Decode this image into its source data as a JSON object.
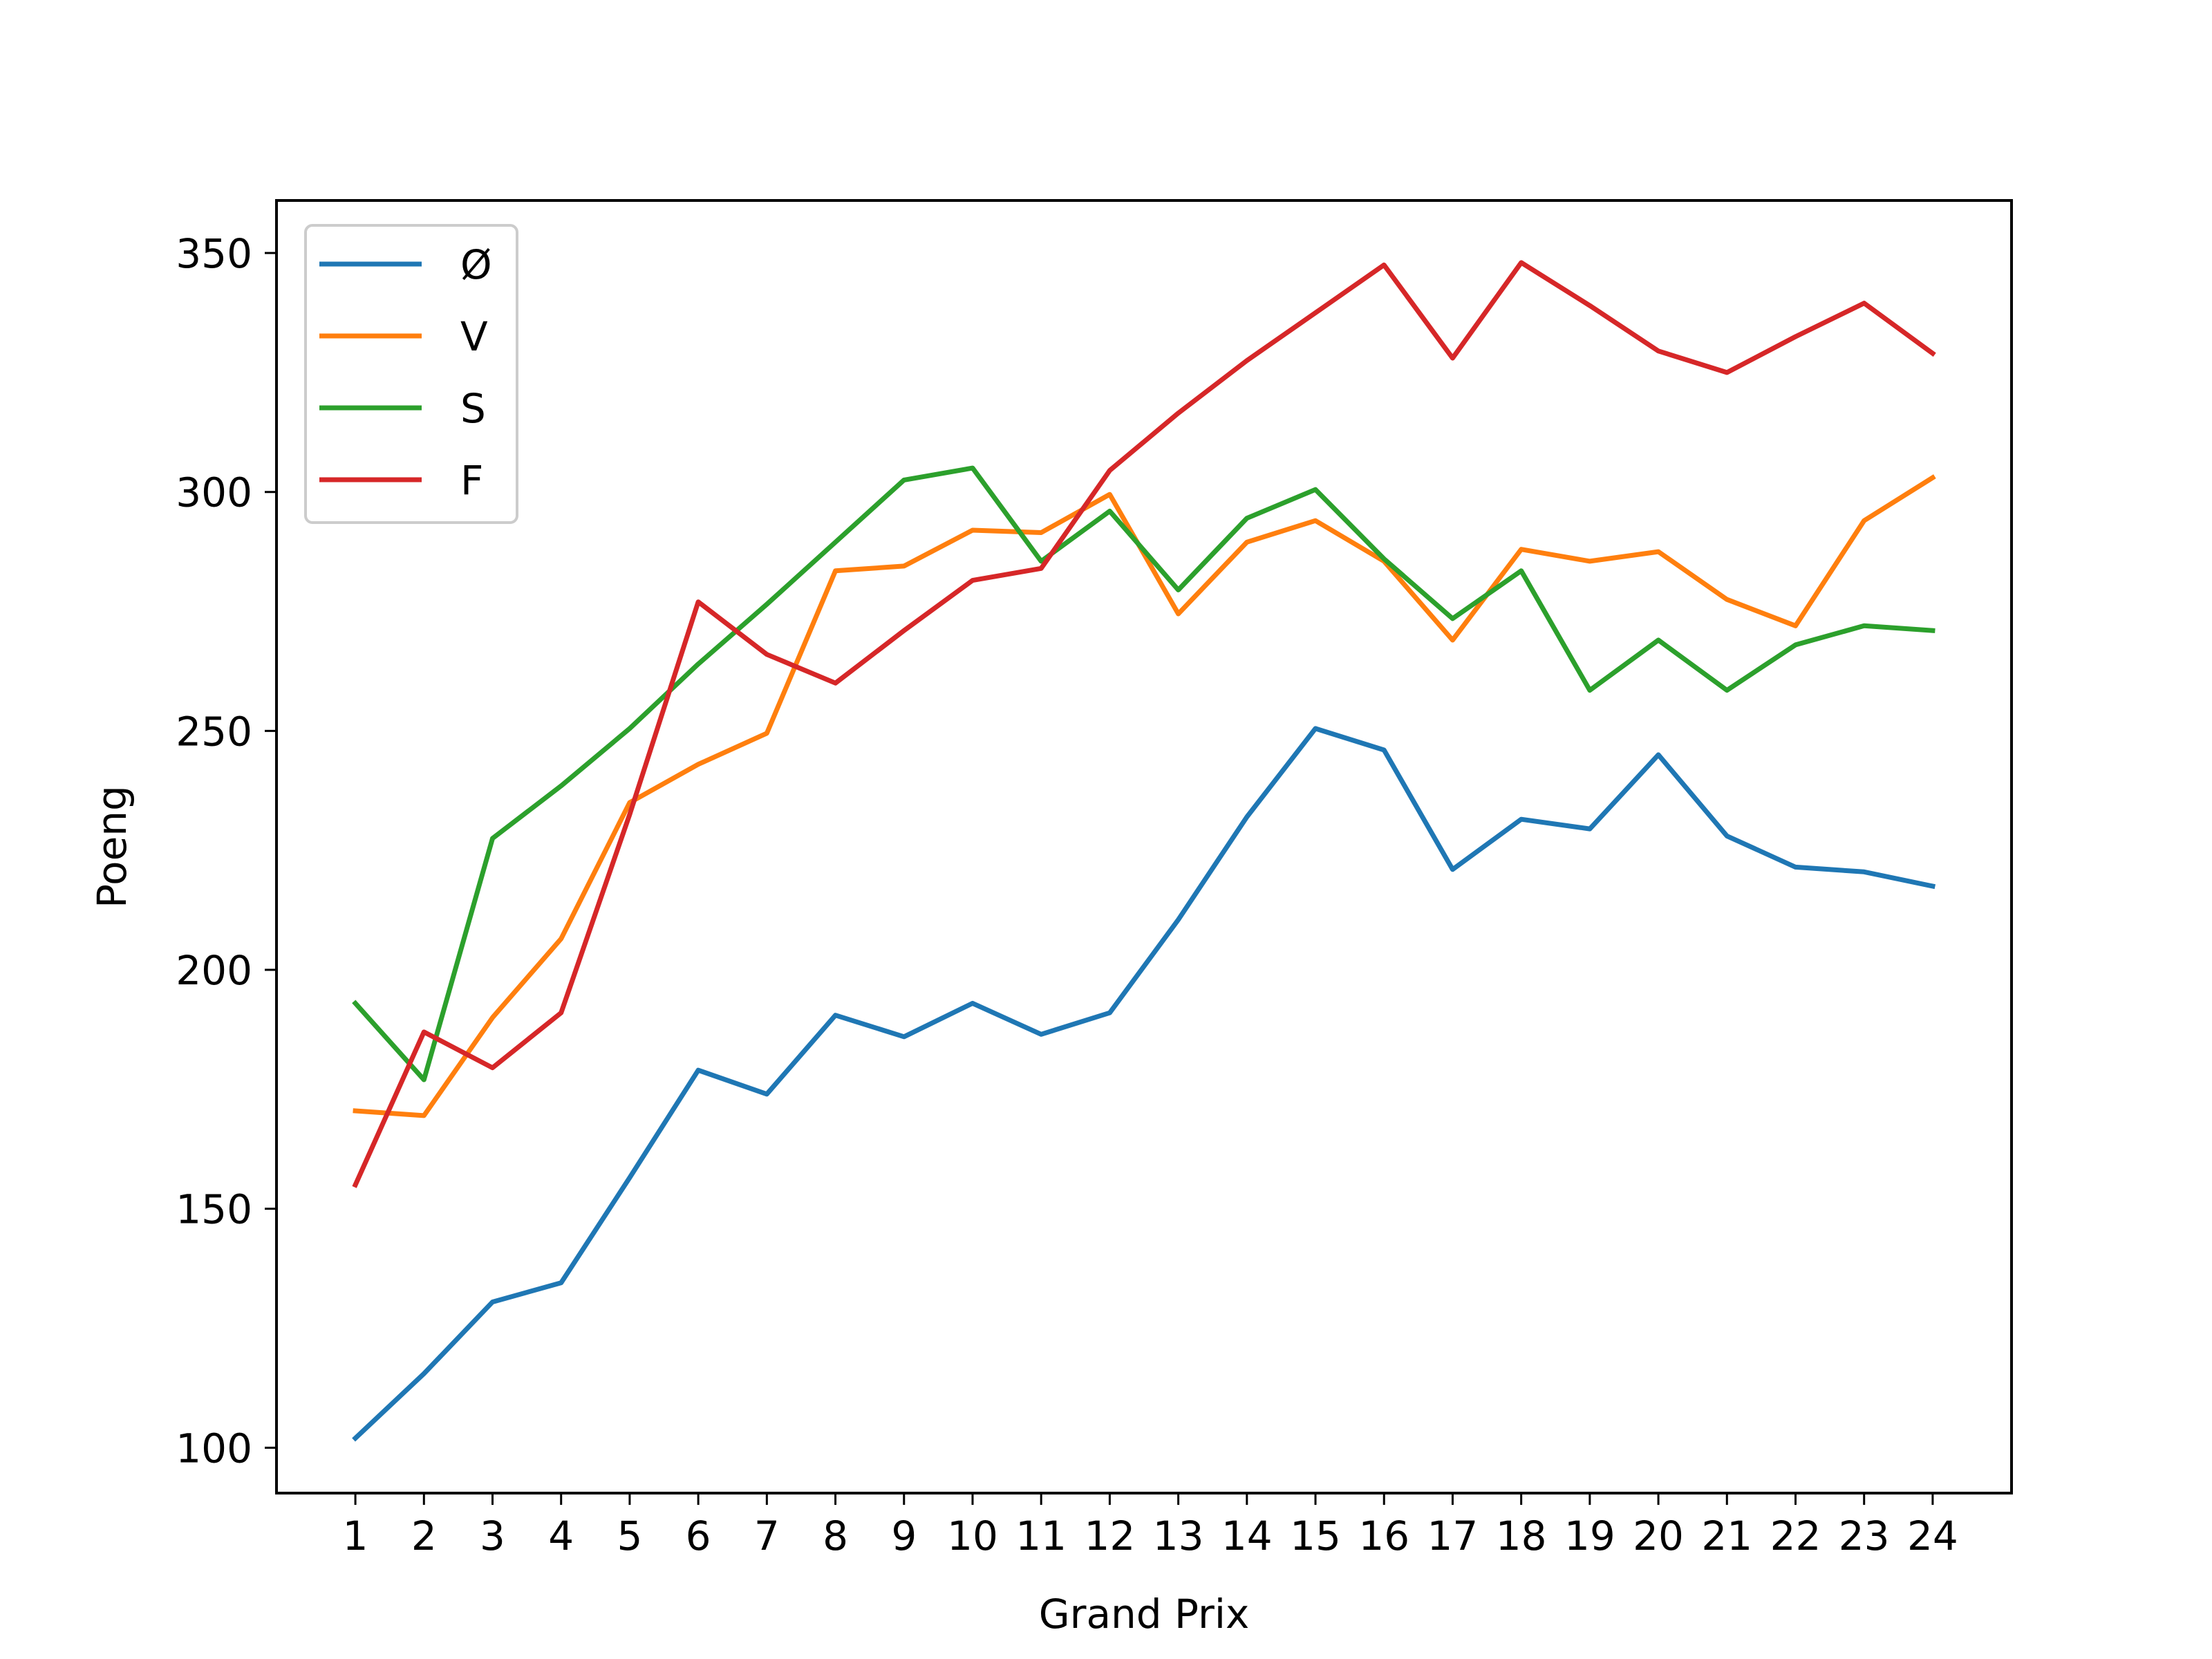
{
  "chart_data": {
    "type": "line",
    "title": "",
    "xlabel": "Grand Prix",
    "ylabel": "Poeng",
    "x": [
      1,
      2,
      3,
      4,
      5,
      6,
      7,
      8,
      9,
      10,
      11,
      12,
      13,
      14,
      15,
      16,
      17,
      18,
      19,
      20,
      21,
      22,
      23,
      24
    ],
    "xlim": [
      -0.15,
      25.15
    ],
    "ylim": [
      90.5,
      361
    ],
    "yticks": [
      100,
      150,
      200,
      250,
      300,
      350
    ],
    "grid": false,
    "legend_position": "top-left",
    "series": [
      {
        "name": "Ø",
        "color": "#1f77b4",
        "values": [
          102,
          115.5,
          130.5,
          134.5,
          156.5,
          179,
          174,
          190.5,
          186,
          193,
          186.5,
          191,
          210.5,
          232,
          250.5,
          246,
          221,
          231.5,
          229.5,
          245,
          228,
          221.5,
          220.5,
          217.5
        ]
      },
      {
        "name": "V",
        "color": "#ff7f0e",
        "values": [
          170.5,
          169.5,
          190,
          206.5,
          235,
          243,
          249.5,
          283.5,
          284.5,
          292,
          291.5,
          299.5,
          274.5,
          289.5,
          294,
          285.5,
          269,
          288,
          285.5,
          287.5,
          277.5,
          272,
          294,
          303
        ]
      },
      {
        "name": "S",
        "color": "#2ca02c",
        "values": [
          193,
          177,
          227.5,
          238.5,
          250.5,
          264,
          276.5,
          289.5,
          302.5,
          305,
          285.5,
          296,
          279.5,
          294.5,
          300.5,
          286,
          273.5,
          283.5,
          258.5,
          269,
          258.5,
          268,
          272,
          271
        ]
      },
      {
        "name": "F",
        "color": "#d62728",
        "values": [
          155,
          187,
          179.5,
          191,
          232.5,
          277,
          266,
          260,
          271,
          281.5,
          284,
          304.5,
          316.5,
          327.5,
          337.5,
          347.5,
          328,
          348,
          339,
          329.5,
          325,
          332.5,
          339.5,
          329
        ]
      }
    ]
  }
}
